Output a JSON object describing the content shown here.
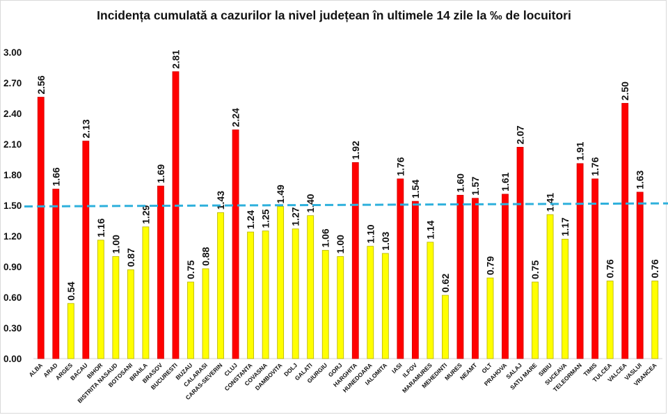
{
  "chart_data": {
    "type": "bar",
    "title": "Incidența cumulată a cazurilor la nivel județean în ultimele 14 zile la ‰ de locuitori",
    "xlabel": "",
    "ylabel": "",
    "ylim": [
      0,
      3.0
    ],
    "yticks": [
      "0.00",
      "0.30",
      "0.60",
      "0.90",
      "1.20",
      "1.50",
      "1.80",
      "2.10",
      "2.40",
      "2.70",
      "3.00"
    ],
    "grid": false,
    "categories": [
      "ALBA",
      "ARAD",
      "ARGES",
      "BACAU",
      "BIHOR",
      "BISTRITA NASAUD",
      "BOTOSANI",
      "BRAILA",
      "BRASOV",
      "BUCURESTI",
      "BUZAU",
      "CALARASI",
      "CARAS-SEVERIN",
      "CLUJ",
      "CONSTANTA",
      "COVASNA",
      "DAMBOVITA",
      "DOLJ",
      "GALATI",
      "GIURGIU",
      "GORJ",
      "HARGHITA",
      "HUNEDOARA",
      "IALOMITA",
      "IASI",
      "ILFOV",
      "MARAMURES",
      "MEHEDINTI",
      "MURES",
      "NEAMT",
      "OLT",
      "PRAHOVA",
      "SALAJ",
      "SATU MARE",
      "SIBIU",
      "SUCEAVA",
      "TELEORMAN",
      "TIMIS",
      "TULCEA",
      "VALCEA",
      "VASLUI",
      "VRANCEA"
    ],
    "values": [
      2.56,
      1.66,
      0.54,
      2.13,
      1.16,
      1.0,
      0.87,
      1.29,
      1.69,
      2.81,
      0.75,
      0.88,
      1.43,
      2.24,
      1.24,
      1.25,
      1.49,
      1.27,
      1.4,
      1.06,
      1.0,
      1.92,
      1.1,
      1.03,
      1.76,
      1.54,
      1.14,
      0.62,
      1.6,
      1.57,
      0.79,
      1.61,
      2.07,
      0.75,
      1.41,
      1.17,
      1.91,
      1.76,
      0.76,
      2.5,
      1.63,
      0.76
    ],
    "colors": {
      "above_threshold": "#ff0000",
      "below_threshold": "#ffff00",
      "bar_edge": "#b5b000",
      "reference_line": "#2eb0dc"
    },
    "threshold": 1.5,
    "reference_line": {
      "start": 1.49,
      "end": 1.52,
      "style": "dashed"
    }
  }
}
